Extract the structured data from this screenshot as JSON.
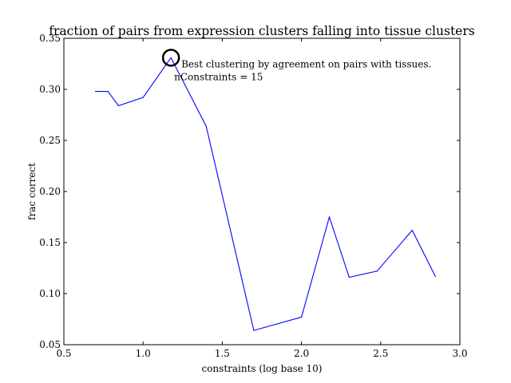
{
  "chart_data": {
    "type": "line",
    "title": "fraction of pairs from expression clusters falling into tissue clusters",
    "xlabel": "constraints (log base 10)",
    "ylabel": "frac correct",
    "xlim": [
      0.5,
      3.0
    ],
    "ylim": [
      0.05,
      0.35
    ],
    "xticks": [
      "0.5",
      "1.0",
      "1.5",
      "2.0",
      "2.5",
      "3.0"
    ],
    "yticks": [
      "0.05",
      "0.10",
      "0.15",
      "0.20",
      "0.25",
      "0.30",
      "0.35"
    ],
    "grid": false,
    "line_color": "#0000ff",
    "series": [
      {
        "x": [
          0.699,
          0.778,
          0.845,
          1.0,
          1.176,
          1.398,
          1.699,
          2.0,
          2.176,
          2.301,
          2.477,
          2.699,
          2.845
        ],
        "y": [
          0.298,
          0.298,
          0.284,
          0.292,
          0.331,
          0.264,
          0.064,
          0.077,
          0.175,
          0.116,
          0.122,
          0.162,
          0.117
        ]
      }
    ],
    "annotation": {
      "line1": "Best clustering by agreement on pairs with tissues.",
      "line2": "nConstraints =  15",
      "marker_x": 1.176,
      "marker_y": 0.331,
      "marker_color": "#000000"
    }
  }
}
